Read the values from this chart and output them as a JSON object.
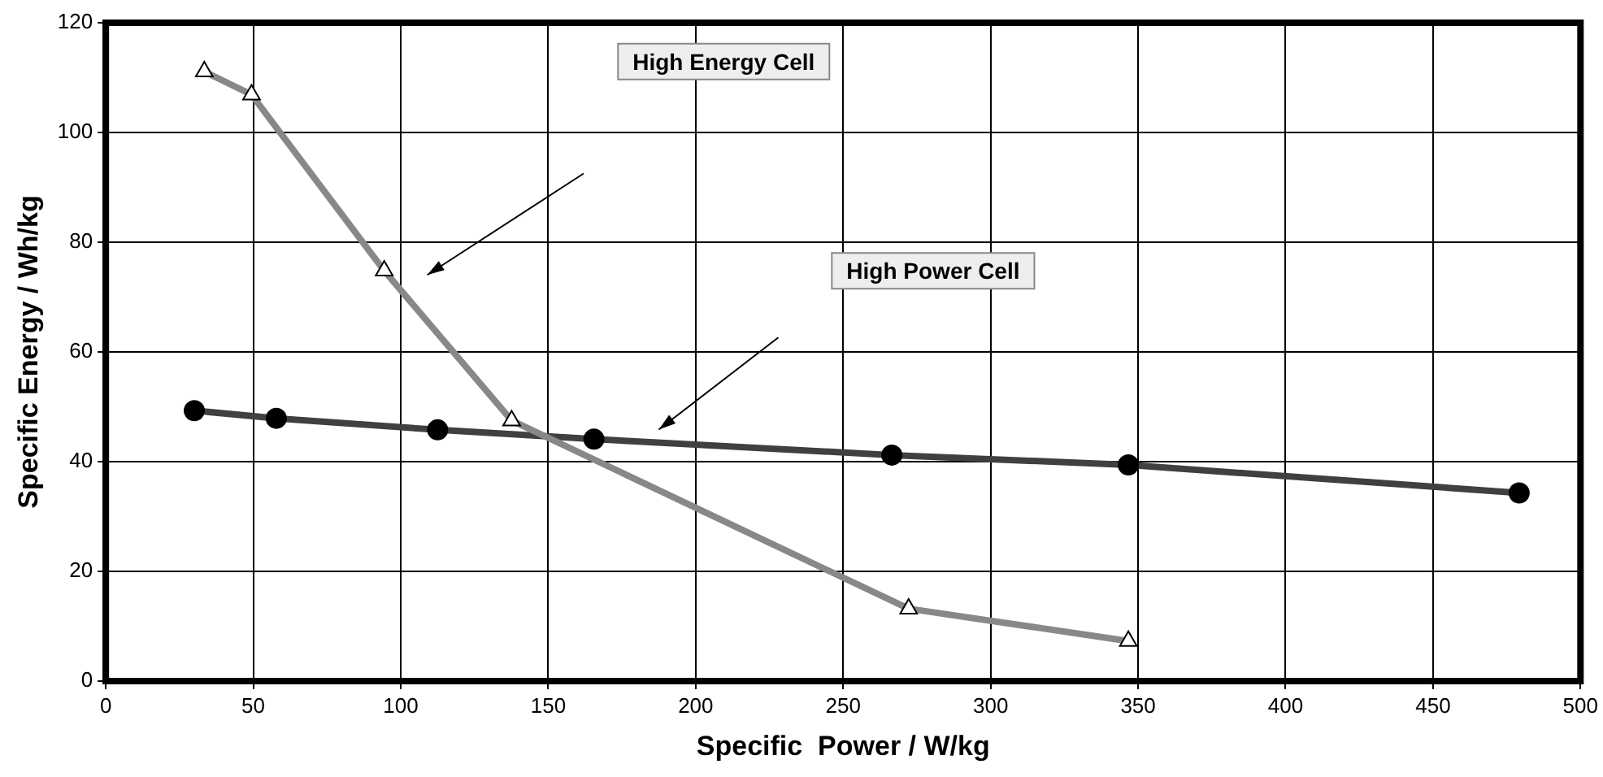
{
  "chart_data": {
    "type": "line",
    "xlabel": "Specific  Power / W/kg",
    "ylabel": "Specific Energy / Wh/kg",
    "xlim": [
      0,
      500
    ],
    "xticks": [
      0,
      50,
      100,
      150,
      200,
      250,
      300,
      350,
      400,
      450,
      500
    ],
    "ylim": [
      0,
      120
    ],
    "yticks": [
      0,
      20,
      40,
      60,
      80,
      100,
      120
    ],
    "grid": true,
    "legend": false,
    "line_style": "solid",
    "series": [
      {
        "color": "#888888",
        "marker": "triangle",
        "x": [
          33.4,
          49.4,
          94.4,
          137.6,
          272.2,
          346.7
        ],
        "values": [
          111.1,
          106.9,
          74.8,
          47.5,
          13.2,
          7.3
        ]
      },
      {
        "color": "#404040",
        "marker": "circle",
        "x": [
          30,
          57.8,
          112.5,
          165.5,
          266.5,
          346.7,
          479.2
        ],
        "values": [
          49.3,
          47.9,
          45.8,
          44.1,
          41.2,
          39.4,
          34.3
        ]
      }
    ],
    "annotations": [
      "High Energy Cell",
      "High Power Cell"
    ]
  }
}
